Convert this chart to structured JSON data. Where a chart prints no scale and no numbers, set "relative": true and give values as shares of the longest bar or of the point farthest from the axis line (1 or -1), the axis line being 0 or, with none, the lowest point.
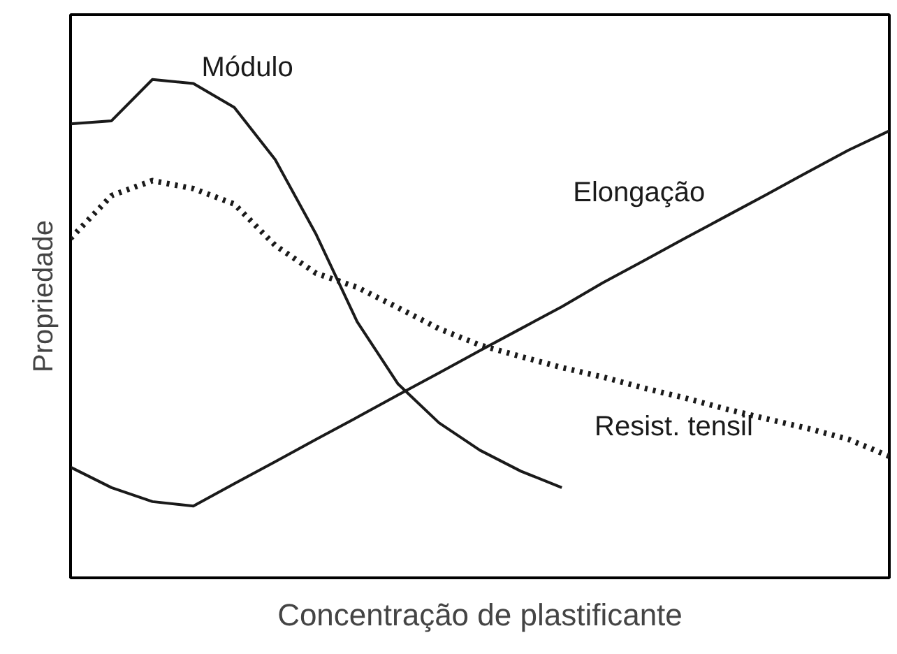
{
  "chart_data": {
    "type": "line",
    "relative": true,
    "xlabel": "Concentração de plastificante",
    "ylabel": "Propriedade",
    "categories": [
      null,
      null,
      null,
      null,
      null,
      null,
      null,
      null,
      null,
      null,
      null,
      null,
      null,
      null,
      null,
      null,
      null,
      null,
      null,
      null,
      null
    ],
    "marker": "none",
    "series": [
      {
        "name": "Módulo",
        "color": "#1a1a1a",
        "line_style": "solid",
        "values": [
          0.911,
          0.917,
          1.0,
          0.992,
          0.944,
          0.839,
          0.689,
          0.514,
          0.389,
          0.311,
          0.256,
          0.214,
          0.181,
          null,
          null,
          null,
          null,
          null,
          null,
          null,
          null
        ]
      },
      {
        "name": "Elongação",
        "color": "#1a1a1a",
        "line_style": "solid",
        "values": [
          0.222,
          0.181,
          0.153,
          0.144,
          0.189,
          0.233,
          0.278,
          0.322,
          0.367,
          0.411,
          0.456,
          0.5,
          0.544,
          0.592,
          0.636,
          0.681,
          0.725,
          0.769,
          0.814,
          0.858,
          0.897
        ]
      },
      {
        "name": "Resist. tensil",
        "color": "#1a1a1a",
        "line_style": "dotted",
        "values": [
          0.681,
          0.767,
          0.797,
          0.781,
          0.75,
          0.667,
          0.611,
          0.583,
          0.542,
          0.5,
          0.467,
          0.444,
          0.422,
          0.403,
          0.381,
          0.361,
          0.339,
          0.319,
          0.3,
          0.278,
          0.244
        ]
      }
    ]
  }
}
